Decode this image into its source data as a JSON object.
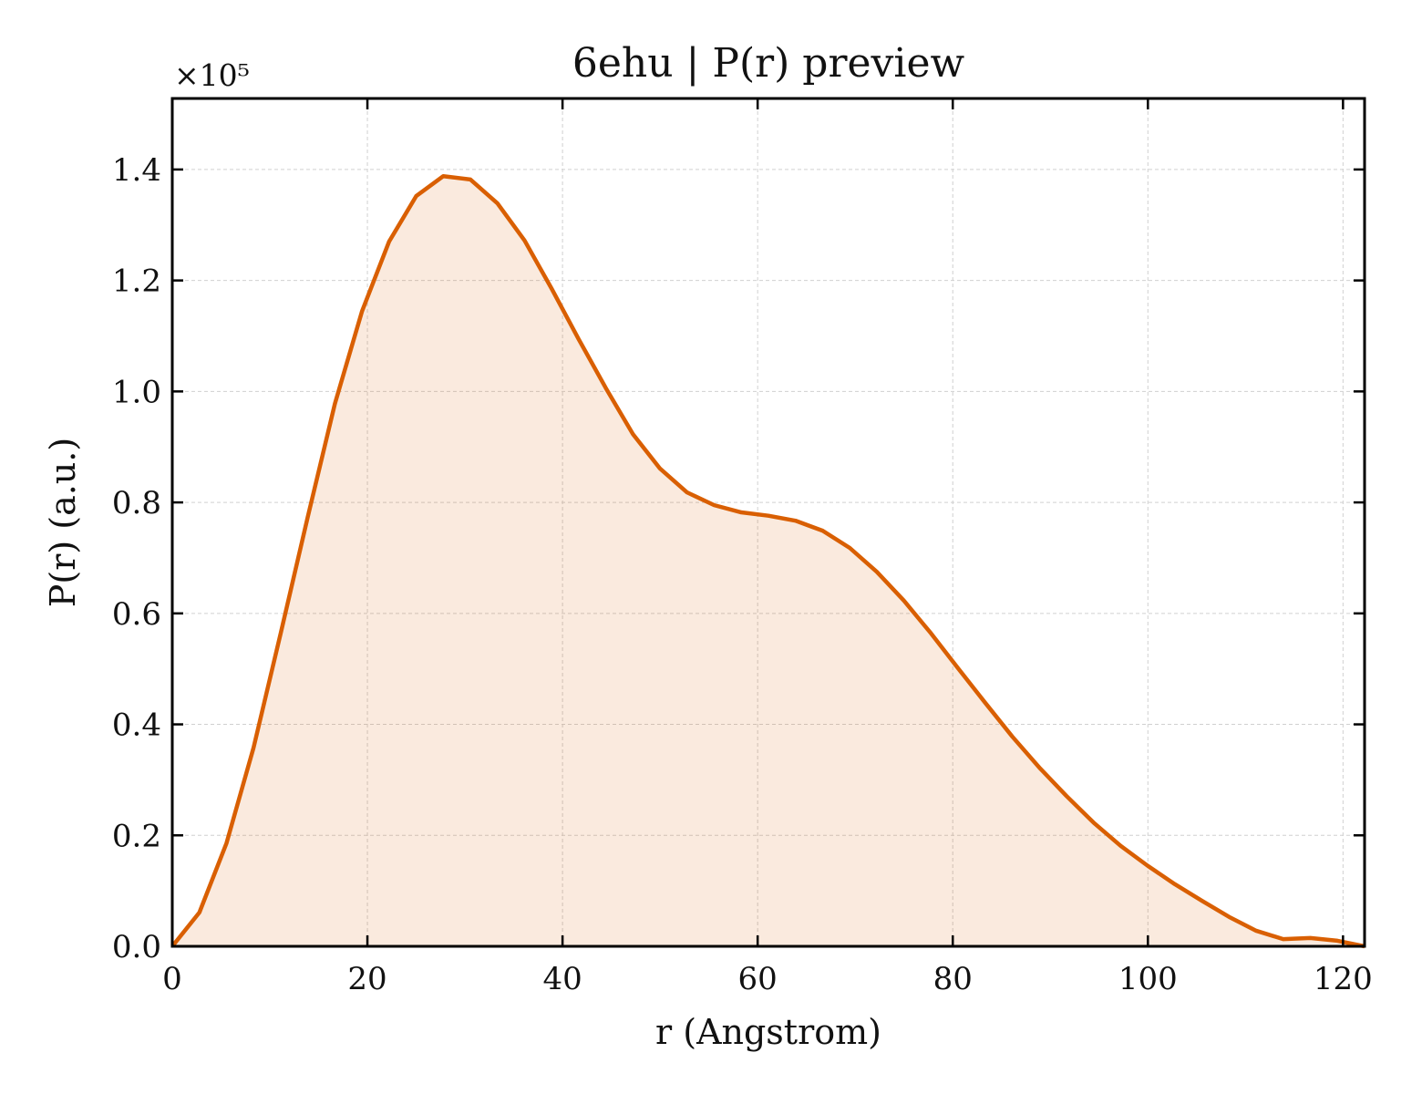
{
  "chart_data": {
    "type": "line",
    "title": "6ehu | P(r) preview",
    "x_label": "r (Angstrom)",
    "y_label": "P(r) (a.u.)",
    "y_offset_label": "×10⁵",
    "x": [
      0,
      2.78,
      5.56,
      8.33,
      11.11,
      13.89,
      16.67,
      19.44,
      22.22,
      25.0,
      27.78,
      30.55,
      33.33,
      36.11,
      38.89,
      41.66,
      44.44,
      47.22,
      49.99,
      52.77,
      55.55,
      58.33,
      61.1,
      63.88,
      66.66,
      69.44,
      72.21,
      74.99,
      77.77,
      80.55,
      83.32,
      86.1,
      88.88,
      91.65,
      94.43,
      97.21,
      99.99,
      102.76,
      105.54,
      108.32,
      111.1,
      113.87,
      116.65,
      119.43,
      122.21
    ],
    "series": [
      {
        "color": "#d95f02",
        "fill": true,
        "values": [
          0,
          0.061,
          0.186,
          0.358,
          0.564,
          0.774,
          0.978,
          1.144,
          1.27,
          1.352,
          1.388,
          1.382,
          1.339,
          1.272,
          1.185,
          1.094,
          1.006,
          0.923,
          0.861,
          0.818,
          0.795,
          0.782,
          0.776,
          0.767,
          0.749,
          0.718,
          0.675,
          0.623,
          0.564,
          0.501,
          0.439,
          0.378,
          0.322,
          0.271,
          0.223,
          0.181,
          0.145,
          0.112,
          0.082,
          0.053,
          0.028,
          0.013,
          0.015,
          0.01,
          0
        ]
      }
    ],
    "xlim": [
      0,
      122.21
    ],
    "ylim": [
      0,
      1.528
    ],
    "xticks": [
      0,
      20,
      40,
      60,
      80,
      100,
      120
    ],
    "yticks": [
      {
        "value": 0,
        "label": "0.0"
      },
      0.2,
      0.4,
      0.6,
      0.8,
      {
        "value": 1,
        "label": "1.0"
      },
      1.2,
      1.4
    ],
    "grid": true
  }
}
